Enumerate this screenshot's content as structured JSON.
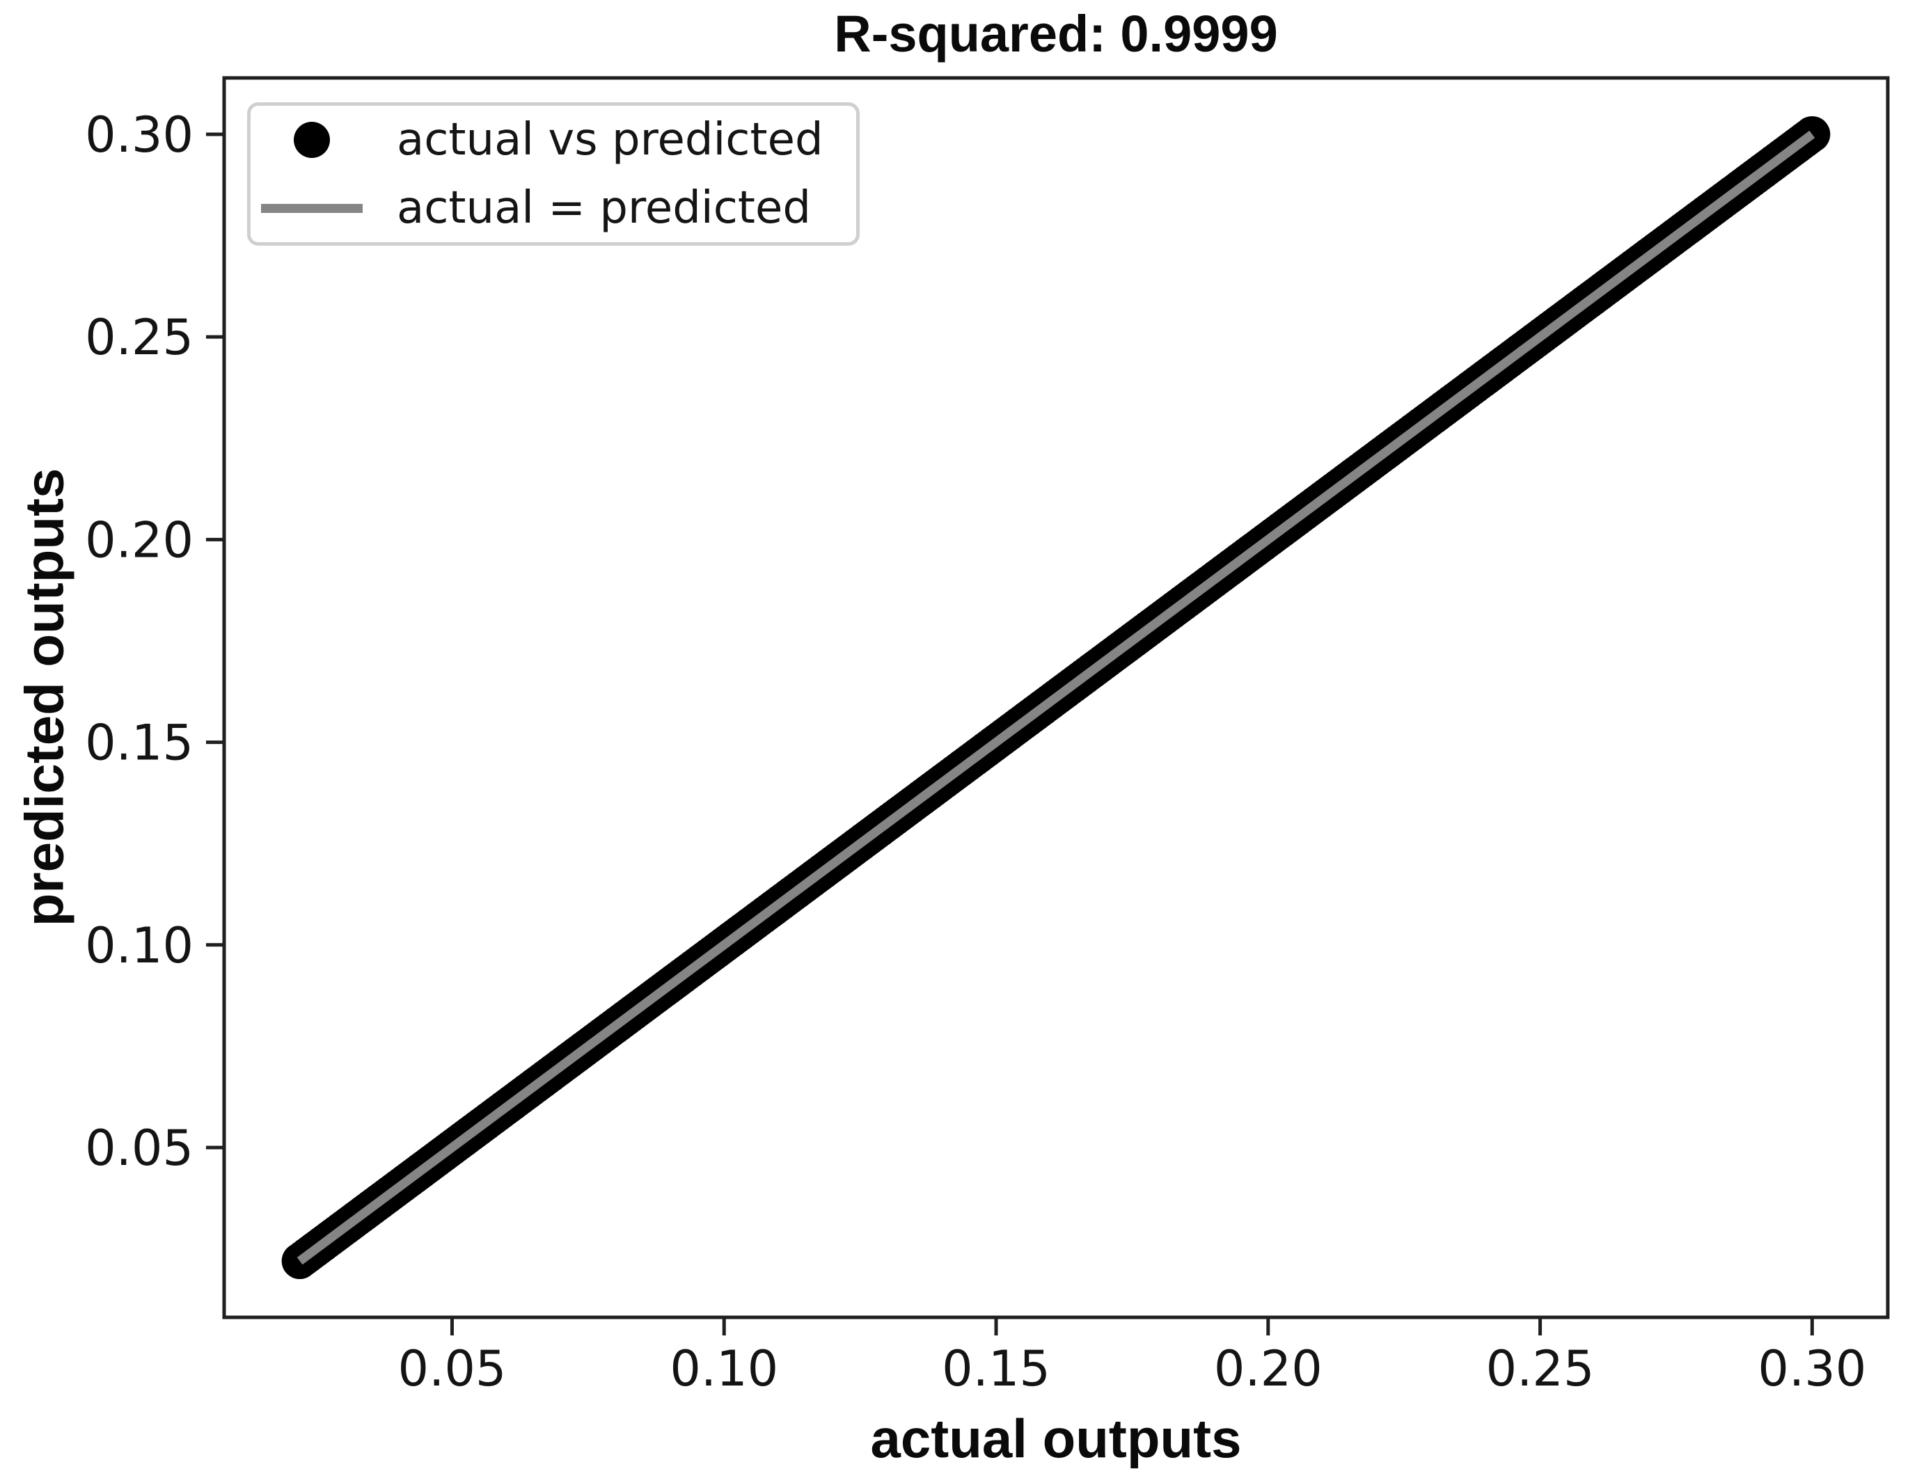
{
  "figure": {
    "background_color": "#ffffff",
    "text_color": "#0a0a0a",
    "spine_color": "#1f1f1f"
  },
  "chart_data": {
    "type": "scatter",
    "title": "R-squared: 0.9999",
    "xlabel": "actual outputs",
    "ylabel": "predicted outputs",
    "xlim": [
      0.0081,
      0.3139
    ],
    "ylim": [
      0.0081,
      0.3139
    ],
    "xticks": [
      0.05,
      0.1,
      0.15,
      0.2,
      0.25,
      0.3
    ],
    "yticks": [
      0.05,
      0.1,
      0.15,
      0.2,
      0.25,
      0.3
    ],
    "tick_decimals": 2,
    "grid": false,
    "legend_position": "upper left",
    "series": [
      {
        "name": "actual vs predicted",
        "kind": "scatter",
        "color": "#000000",
        "marker": "circle",
        "relation": "y = x (predictions match actuals almost exactly)",
        "x_min": 0.022,
        "x_max": 0.3,
        "y_min": 0.022,
        "y_max": 0.3,
        "n_points": 400
      },
      {
        "name": "actual = predicted",
        "kind": "line",
        "color": "#858585",
        "x": [
          0.022,
          0.3
        ],
        "y": [
          0.022,
          0.3
        ]
      }
    ]
  },
  "legend": {
    "entries": [
      {
        "label": "actual vs predicted",
        "swatch": "dot",
        "color": "#000000"
      },
      {
        "label": "actual = predicted",
        "swatch": "line",
        "color": "#858585"
      }
    ]
  }
}
